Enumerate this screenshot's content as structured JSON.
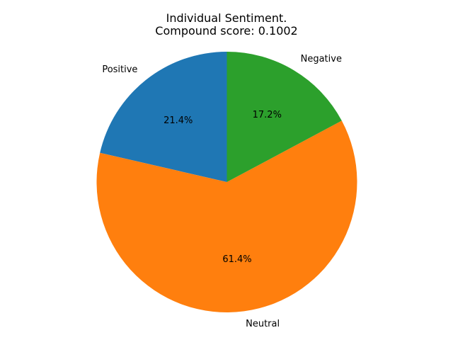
{
  "chart_data": {
    "type": "pie",
    "title_line1": "Individual Sentiment.",
    "title_line2": "Compound score: 0.1002",
    "labels": [
      "Positive",
      "Neutral",
      "Negative"
    ],
    "values": [
      21.4,
      61.4,
      17.2
    ],
    "autopct": [
      "21.4%",
      "61.4%",
      "17.2%"
    ],
    "colors": [
      "#1f77b4",
      "#ff7f0e",
      "#2ca02c"
    ],
    "start_angle_deg": 90,
    "direction": "counterclockwise"
  }
}
